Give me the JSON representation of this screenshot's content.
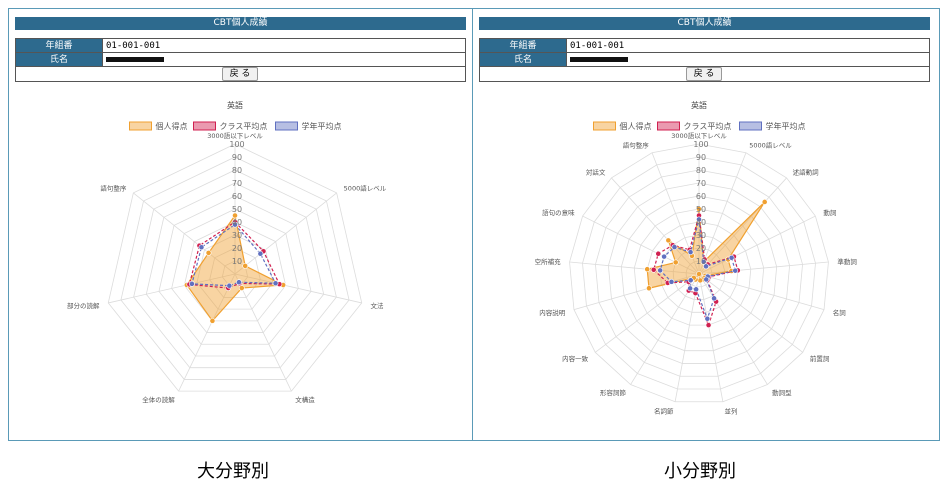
{
  "panels": [
    {
      "title": "CBT個人成績",
      "info": {
        "class_label": "年組番",
        "class_value": "01-001-001",
        "name_label": "氏名"
      },
      "back_label": "戻 る",
      "caption": "大分野別"
    },
    {
      "title": "CBT個人成績",
      "info": {
        "class_label": "年組番",
        "class_value": "01-001-001",
        "name_label": "氏名"
      },
      "back_label": "戻 る",
      "caption": "小分野別"
    }
  ],
  "chart_data": [
    {
      "type": "radar",
      "title": "英語",
      "categories": [
        "3000語以下レベル",
        "5000語レベル",
        "文法",
        "文構造",
        "全体の読解",
        "部分の読解",
        "語句整序"
      ],
      "ticks": [
        "10",
        "20",
        "30",
        "40",
        "50",
        "60",
        "70",
        "80",
        "90",
        "100"
      ],
      "range": [
        0,
        100
      ],
      "legend_position": "top",
      "series": [
        {
          "name": "個人得点",
          "values": [
            45,
            10,
            38,
            12,
            40,
            38,
            26
          ],
          "color": "#f0a030"
        },
        {
          "name": "クラス平均点",
          "values": [
            40,
            28,
            35,
            8,
            12,
            36,
            35
          ],
          "color": "#d02050"
        },
        {
          "name": "学年平均点",
          "values": [
            38,
            25,
            32,
            7,
            10,
            34,
            33
          ],
          "color": "#6070c0"
        }
      ]
    },
    {
      "type": "radar",
      "title": "英語",
      "categories": [
        "3000語以下レベル",
        "5000語レベル",
        "述語動詞",
        "動詞",
        "準動詞",
        "名詞",
        "前置詞",
        "動詞型",
        "並列",
        "名詞節",
        "形容詞節",
        "内容一致",
        "内容説明",
        "空所補充",
        "語句の意味",
        "対話文",
        "語句整序"
      ],
      "ticks": [
        "10",
        "20",
        "30",
        "40",
        "50",
        "60",
        "70",
        "80",
        "90",
        "100"
      ],
      "range": [
        0,
        100
      ],
      "legend_position": "top",
      "series": [
        {
          "name": "個人得点",
          "values": [
            50,
            10,
            75,
            25,
            25,
            5,
            5,
            5,
            5,
            0,
            5,
            5,
            40,
            40,
            20,
            35,
            15
          ],
          "color": "#f0a030"
        },
        {
          "name": "クラス平均点",
          "values": [
            45,
            12,
            10,
            30,
            30,
            8,
            8,
            25,
            40,
            15,
            15,
            10,
            25,
            35,
            35,
            30,
            20
          ],
          "color": "#d02050"
        },
        {
          "name": "学年平均点",
          "values": [
            42,
            10,
            8,
            28,
            28,
            7,
            7,
            22,
            35,
            12,
            13,
            8,
            22,
            30,
            30,
            28,
            18
          ],
          "color": "#6070c0"
        }
      ]
    }
  ]
}
